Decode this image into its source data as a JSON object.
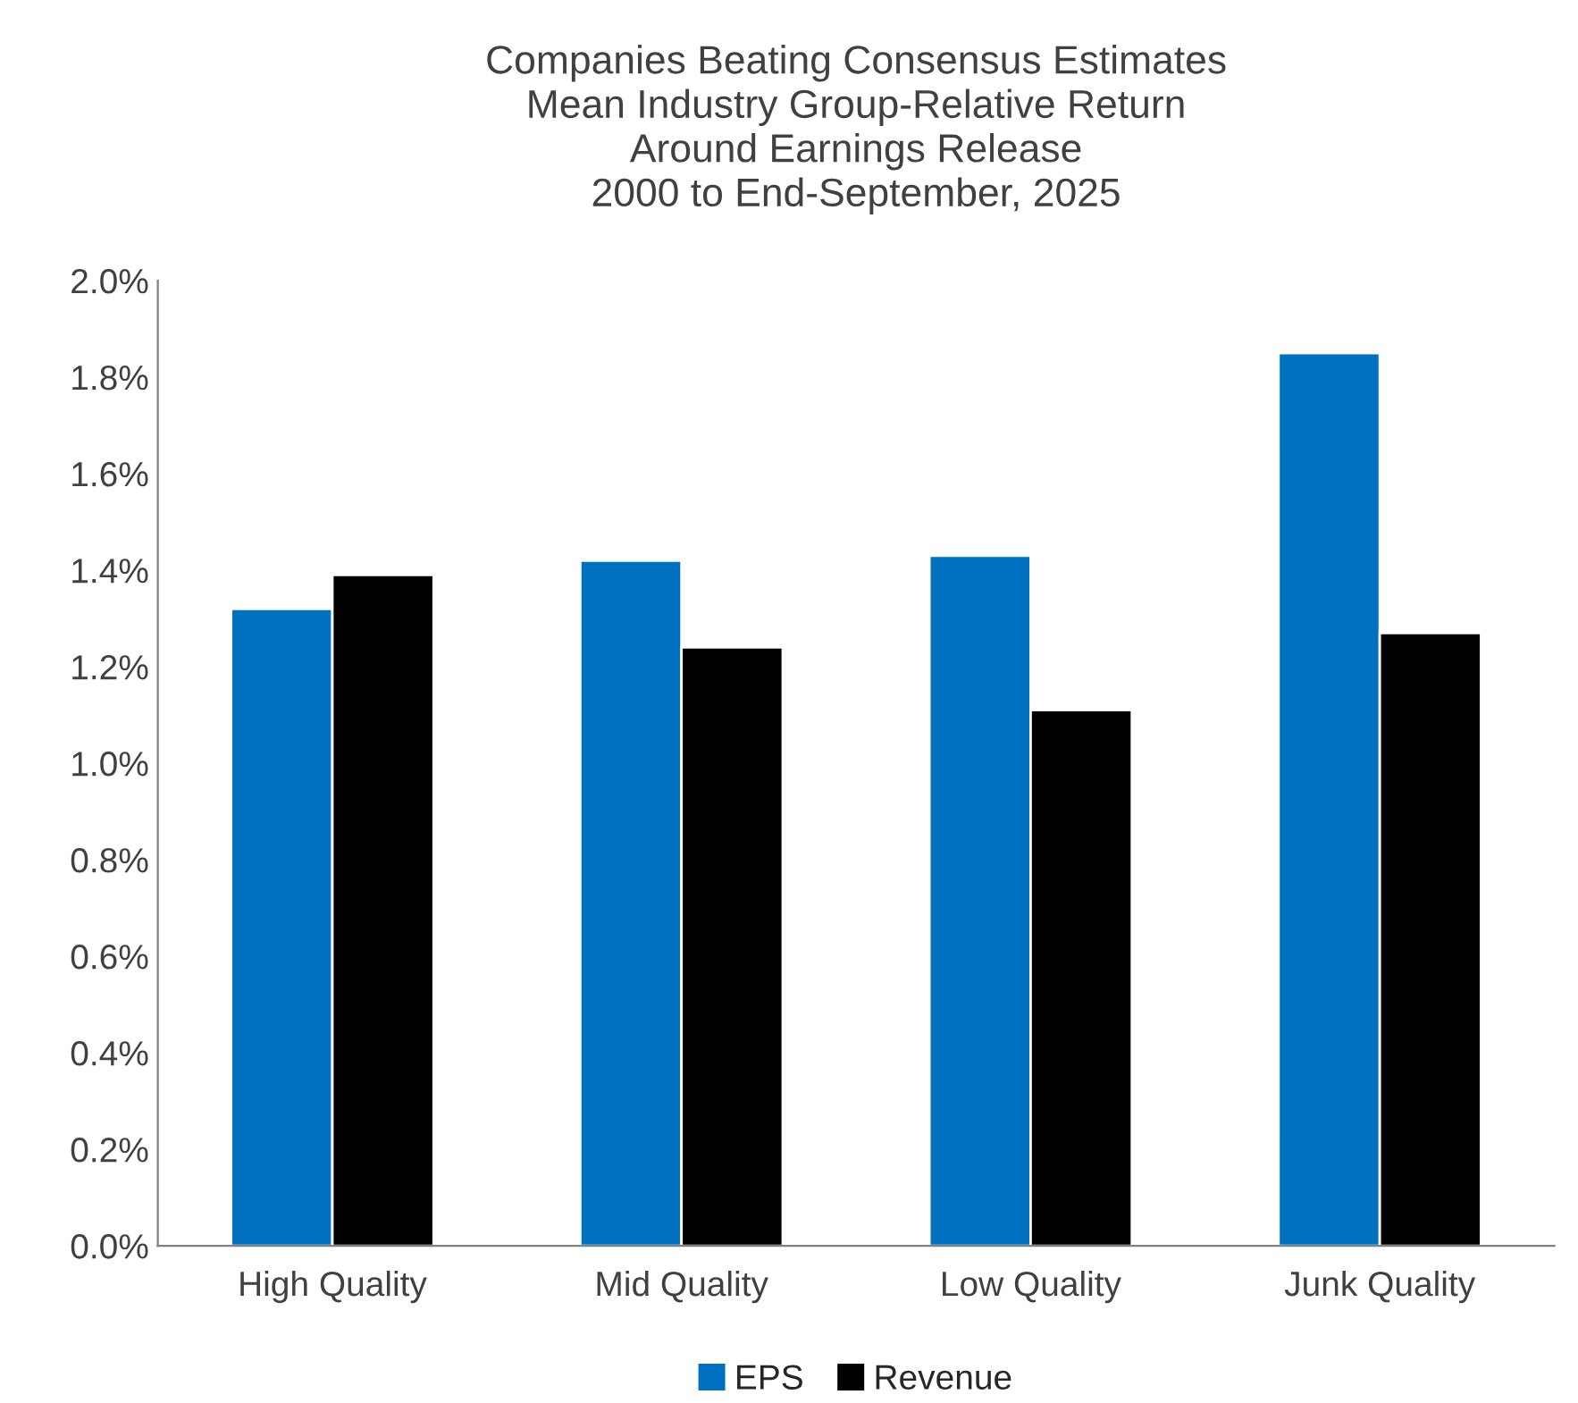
{
  "chart_data": {
    "type": "bar",
    "title": "Companies Beating Consensus Estimates\nMean Industry Group-Relative Return\nAround Earnings Release\n2000 to End-September, 2025",
    "categories": [
      "High Quality",
      "Mid Quality",
      "Low Quality",
      "Junk Quality"
    ],
    "series": [
      {
        "name": "EPS",
        "color": "#0070c0",
        "values": [
          1.32,
          1.42,
          1.43,
          1.85
        ]
      },
      {
        "name": "Revenue",
        "color": "#000000",
        "values": [
          1.39,
          1.24,
          1.11,
          1.27
        ]
      }
    ],
    "ylim": [
      0,
      2.0
    ],
    "yticks": [
      {
        "value": 0,
        "label": "0.0%"
      },
      {
        "value": 0.2,
        "label": "0.2%"
      },
      {
        "value": 0.4,
        "label": "0.4%"
      },
      {
        "value": 0.6,
        "label": "0.6%"
      },
      {
        "value": 0.8,
        "label": "0.8%"
      },
      {
        "value": 1.0,
        "label": "1.0%"
      },
      {
        "value": 1.2,
        "label": "1.2%"
      },
      {
        "value": 1.4,
        "label": "1.4%"
      },
      {
        "value": 1.6,
        "label": "1.6%"
      },
      {
        "value": 1.8,
        "label": "1.8%"
      },
      {
        "value": 2.0,
        "label": "2.0%"
      }
    ],
    "grid": false,
    "legend": "bottom"
  }
}
